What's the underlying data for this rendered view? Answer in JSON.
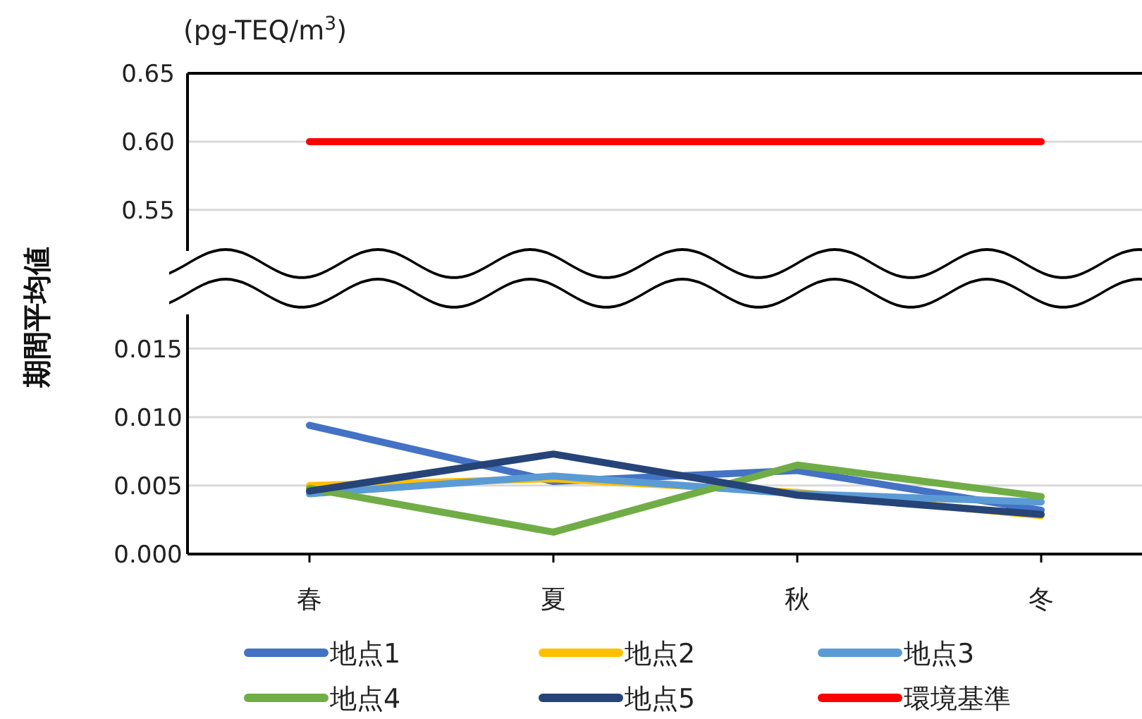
{
  "chart_data": [
    {
      "type": "line",
      "ylabel": "(pg-TEQ/m$^{3}$)",
      "categories": [
        null,
        null,
        null,
        null
      ],
      "ylim": [
        0.52,
        0.65
      ],
      "yticks": [
        {
          "value": 0.55,
          "label": "0.55"
        },
        {
          "value": 0.6,
          "label": "0.60"
        },
        {
          "value": 0.65,
          "label": "0.65"
        }
      ],
      "grid": "y",
      "tick_labels": "y",
      "legend": "bottom",
      "series": [
        {
          "name": "環境基準",
          "color": "#ff0000",
          "values": [
            0.6,
            0.6,
            0.6,
            0.6
          ]
        }
      ]
    },
    {
      "type": "line",
      "ylabel": "期間平均値",
      "categories": [
        "春",
        "夏",
        "秋",
        "冬"
      ],
      "ylim": [
        0,
        0.0175
      ],
      "yticks": [
        {
          "value": 0,
          "label": "0.000"
        },
        {
          "value": 0.005,
          "label": "0.005"
        },
        {
          "value": 0.01,
          "label": "0.010"
        },
        {
          "value": 0.015,
          "label": "0.015"
        }
      ],
      "grid": "y",
      "legend": "bottom",
      "series": [
        {
          "name": "地点1",
          "color": "#4472c4",
          "values": [
            0.0094,
            0.0053,
            0.0061,
            0.0032
          ]
        },
        {
          "name": "地点2",
          "color": "#ffc000",
          "values": [
            0.005,
            0.0055,
            0.0045,
            0.0028
          ]
        },
        {
          "name": "地点3",
          "color": "#5b9bd5",
          "values": [
            0.0044,
            0.0057,
            0.0044,
            0.0038
          ]
        },
        {
          "name": "地点4",
          "color": "#70ad47",
          "values": [
            0.0048,
            0.0016,
            0.0065,
            0.0042
          ]
        },
        {
          "name": "地点5",
          "color": "#264478",
          "values": [
            0.0046,
            0.0073,
            0.0043,
            0.0029
          ]
        }
      ]
    }
  ]
}
